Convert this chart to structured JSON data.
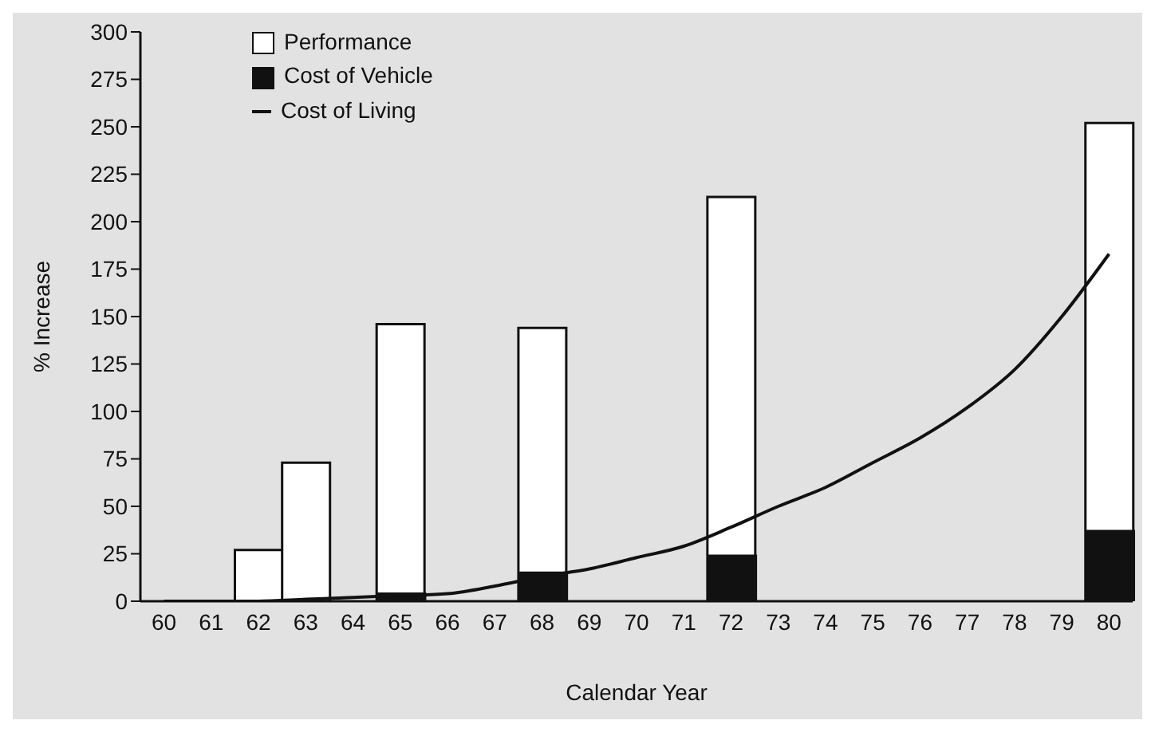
{
  "chart_data": {
    "type": "bar",
    "xlabel": "Calendar Year",
    "ylabel": "% Increase",
    "categories": [
      "60",
      "61",
      "62",
      "63",
      "64",
      "65",
      "66",
      "67",
      "68",
      "69",
      "70",
      "71",
      "72",
      "73",
      "74",
      "75",
      "76",
      "77",
      "78",
      "79",
      "80"
    ],
    "series": [
      {
        "name": "Performance",
        "color": "#ffffff",
        "values": [
          null,
          null,
          27,
          73,
          null,
          146,
          null,
          null,
          144,
          null,
          null,
          null,
          213,
          null,
          null,
          null,
          null,
          null,
          null,
          null,
          252
        ]
      },
      {
        "name": "Cost of Vehicle",
        "color": "#111111",
        "values": [
          null,
          null,
          null,
          null,
          null,
          4,
          null,
          null,
          15,
          null,
          null,
          null,
          24,
          null,
          null,
          null,
          null,
          null,
          null,
          null,
          37
        ]
      },
      {
        "name": "Cost of Living",
        "type": "line",
        "color": "#111111",
        "values": [
          0,
          0,
          0,
          1,
          2,
          3,
          4,
          8,
          13,
          17,
          23,
          29,
          39,
          50,
          60,
          73,
          86,
          102,
          122,
          150,
          183
        ]
      }
    ],
    "ylim": [
      0,
      300
    ],
    "yticks": [
      0,
      25,
      50,
      75,
      100,
      125,
      150,
      175,
      200,
      225,
      250,
      275,
      300
    ],
    "grid": false,
    "legend": "top left",
    "marker": "none",
    "line_style": "solid"
  }
}
